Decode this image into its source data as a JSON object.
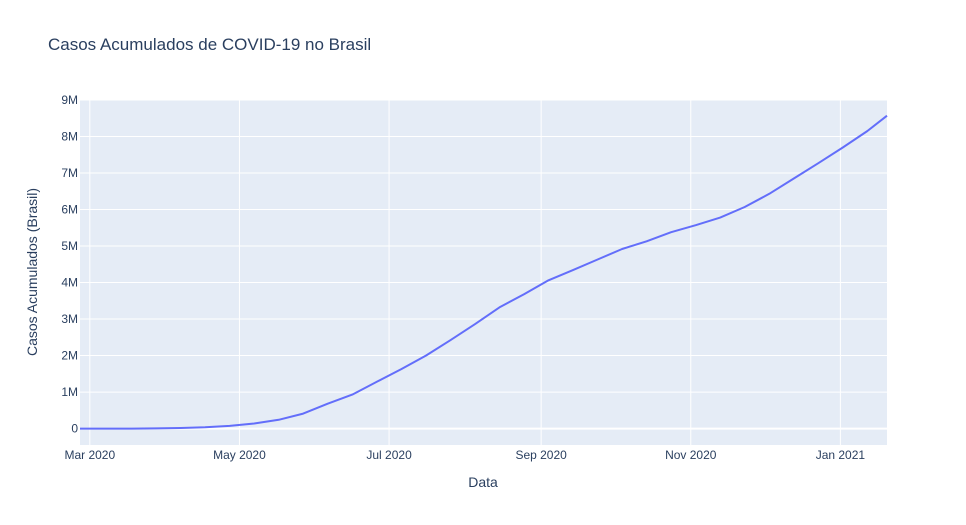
{
  "chart_data": {
    "type": "line",
    "title": "Casos Acumulados de COVID-19 no Brasil",
    "xlabel": "Data",
    "ylabel": "Casos Acumulados (Brasil)",
    "xlim": [
      "2020-02-26",
      "2021-01-20"
    ],
    "ylim": [
      -450000,
      9000000
    ],
    "grid": true,
    "x_ticks": [
      {
        "date": "2020-03-01",
        "label": "Mar 2020"
      },
      {
        "date": "2020-05-01",
        "label": "May 2020"
      },
      {
        "date": "2020-07-01",
        "label": "Jul 2020"
      },
      {
        "date": "2020-09-01",
        "label": "Sep 2020"
      },
      {
        "date": "2020-11-01",
        "label": "Nov 2020"
      },
      {
        "date": "2021-01-01",
        "label": "Jan 2021"
      }
    ],
    "y_ticks": [
      {
        "value": 0,
        "label": "0"
      },
      {
        "value": 1000000,
        "label": "1M"
      },
      {
        "value": 2000000,
        "label": "2M"
      },
      {
        "value": 3000000,
        "label": "3M"
      },
      {
        "value": 4000000,
        "label": "4M"
      },
      {
        "value": 5000000,
        "label": "5M"
      },
      {
        "value": 6000000,
        "label": "6M"
      },
      {
        "value": 7000000,
        "label": "7M"
      },
      {
        "value": 8000000,
        "label": "8M"
      },
      {
        "value": 9000000,
        "label": "9M"
      }
    ],
    "line_color": "#636efa",
    "series": [
      {
        "x": [
          "2020-02-26",
          "2020-03-08",
          "2020-03-18",
          "2020-03-28",
          "2020-04-07",
          "2020-04-17",
          "2020-04-27",
          "2020-05-07",
          "2020-05-17",
          "2020-05-27",
          "2020-06-06",
          "2020-06-16",
          "2020-06-26",
          "2020-07-06",
          "2020-07-16",
          "2020-07-26",
          "2020-08-05",
          "2020-08-15",
          "2020-08-25",
          "2020-09-04",
          "2020-09-14",
          "2020-09-24",
          "2020-10-04",
          "2020-10-14",
          "2020-10-24",
          "2020-11-03",
          "2020-11-13",
          "2020-11-23",
          "2020-12-03",
          "2020-12-13",
          "2020-12-23",
          "2021-01-02",
          "2021-01-12",
          "2021-01-20"
        ],
        "values": [
          0,
          25,
          430,
          4500,
          16000,
          36000,
          72000,
          140000,
          240000,
          410000,
          680000,
          930000,
          1280000,
          1630000,
          2000000,
          2420000,
          2860000,
          3320000,
          3680000,
          4060000,
          4340000,
          4630000,
          4920000,
          5130000,
          5380000,
          5570000,
          5780000,
          6070000,
          6430000,
          6850000,
          7270000,
          7700000,
          8150000,
          8570000
        ]
      }
    ]
  }
}
